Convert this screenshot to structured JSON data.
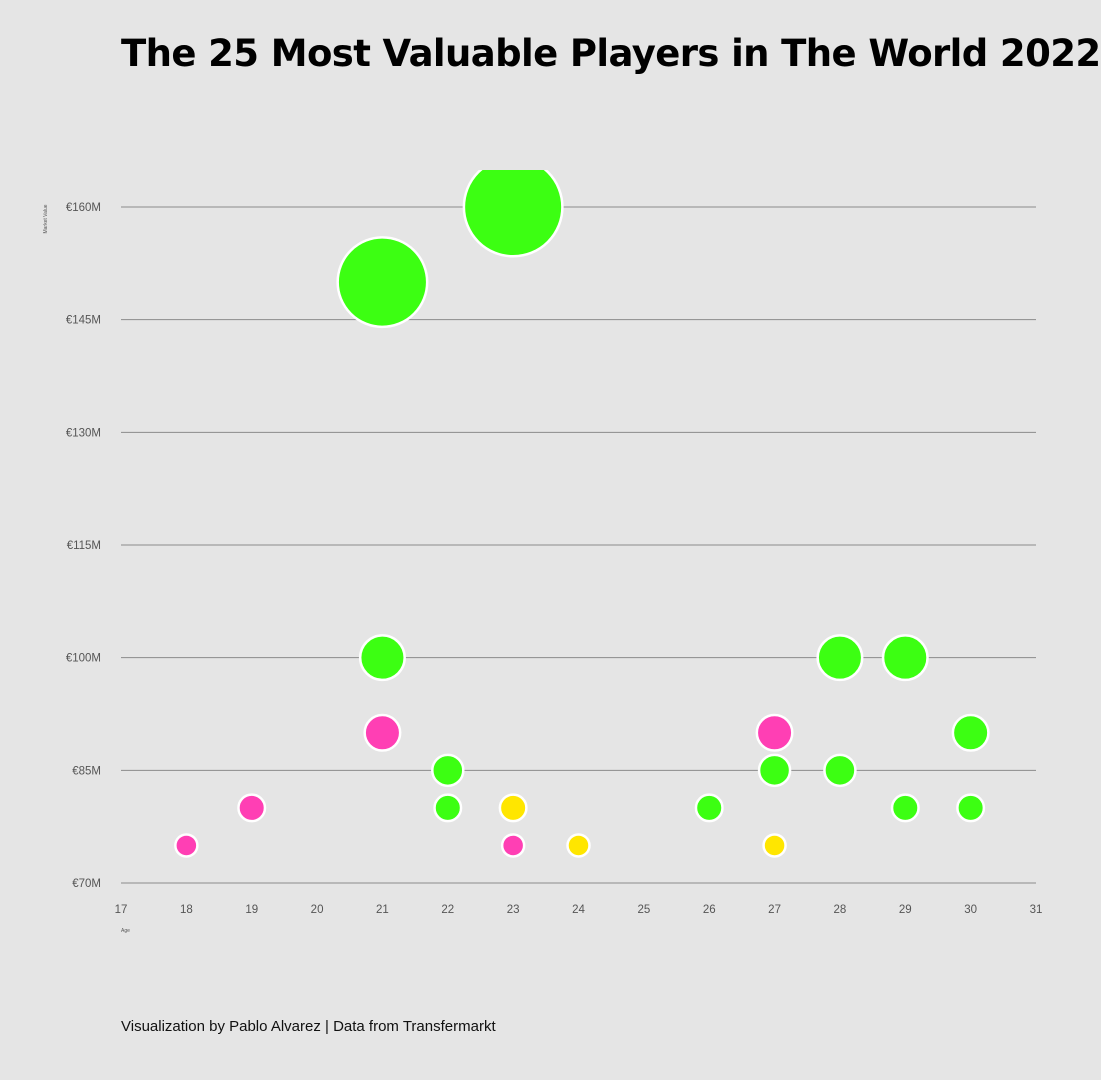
{
  "chart_data": {
    "type": "scatter",
    "title": "The 25 Most Valuable Players in The World 2022",
    "xlabel": "Age",
    "ylabel": "Market Value",
    "xlim": [
      17,
      31
    ],
    "ylim": [
      70,
      165
    ],
    "x_ticks": [
      "17",
      "18",
      "19",
      "20",
      "21",
      "22",
      "23",
      "24",
      "25",
      "26",
      "27",
      "28",
      "29",
      "30",
      "31"
    ],
    "y_ticks": [
      {
        "value": 70,
        "label": "€70M"
      },
      {
        "value": 85,
        "label": "€85M"
      },
      {
        "value": 100,
        "label": "€100M"
      },
      {
        "value": 115,
        "label": "€115M"
      },
      {
        "value": 130,
        "label": "€130M"
      },
      {
        "value": 145,
        "label": "€145M"
      },
      {
        "value": 160,
        "label": "€160M"
      }
    ],
    "grid": true,
    "bubble_size": "market value",
    "colors": {
      "green": "#3cff12",
      "pink": "#ff3fb4",
      "yellow": "#ffe600"
    },
    "points": [
      {
        "x": 18,
        "y": 75,
        "color": "pink"
      },
      {
        "x": 19,
        "y": 80,
        "color": "pink"
      },
      {
        "x": 21,
        "y": 150,
        "color": "green"
      },
      {
        "x": 21,
        "y": 100,
        "color": "green"
      },
      {
        "x": 21,
        "y": 90,
        "color": "pink"
      },
      {
        "x": 22,
        "y": 85,
        "color": "green"
      },
      {
        "x": 22,
        "y": 80,
        "color": "green"
      },
      {
        "x": 23,
        "y": 160,
        "color": "green"
      },
      {
        "x": 23,
        "y": 80,
        "color": "yellow"
      },
      {
        "x": 23,
        "y": 75,
        "color": "pink"
      },
      {
        "x": 24,
        "y": 75,
        "color": "yellow"
      },
      {
        "x": 26,
        "y": 80,
        "color": "green"
      },
      {
        "x": 27,
        "y": 90,
        "color": "pink"
      },
      {
        "x": 27,
        "y": 85,
        "color": "green"
      },
      {
        "x": 27,
        "y": 75,
        "color": "yellow"
      },
      {
        "x": 28,
        "y": 100,
        "color": "green"
      },
      {
        "x": 28,
        "y": 85,
        "color": "green"
      },
      {
        "x": 29,
        "y": 100,
        "color": "green"
      },
      {
        "x": 29,
        "y": 80,
        "color": "green"
      },
      {
        "x": 30,
        "y": 90,
        "color": "green"
      },
      {
        "x": 30,
        "y": 80,
        "color": "green"
      }
    ]
  },
  "caption": "Visualization by Pablo Alvarez | Data from Transfermarkt"
}
